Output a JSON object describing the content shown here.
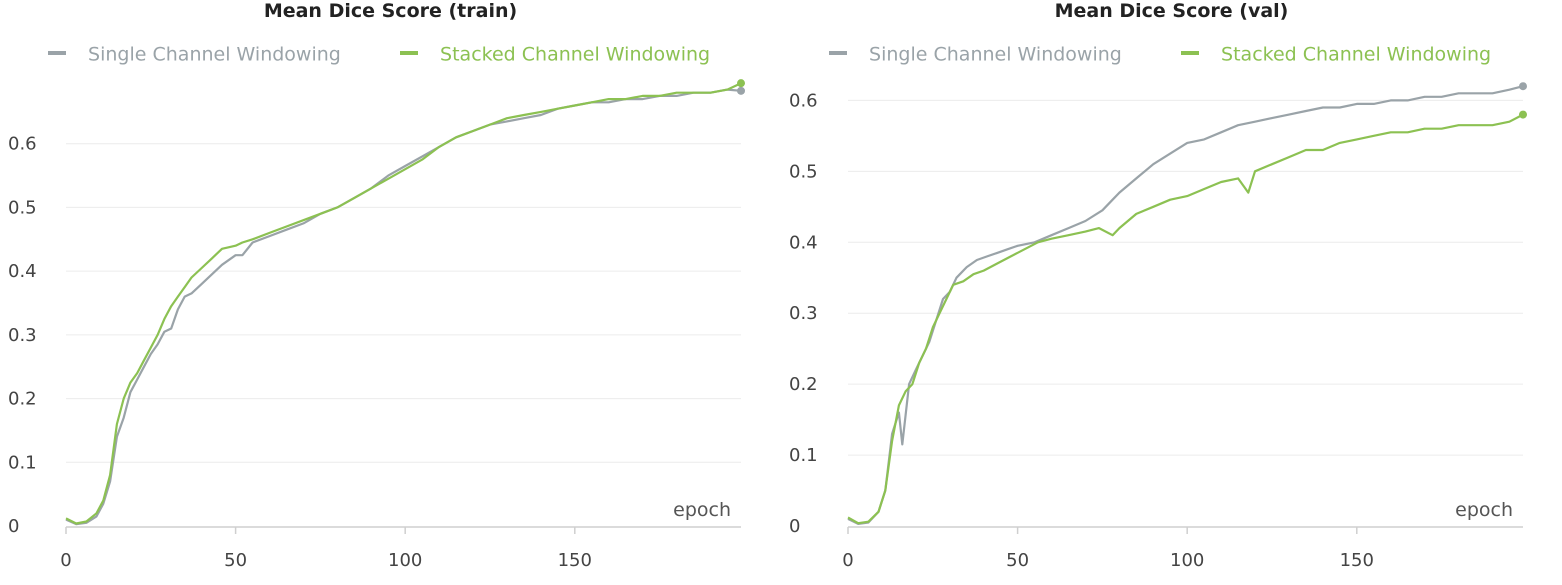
{
  "chart_data": [
    {
      "type": "line",
      "title": "Mean Dice Score (train)",
      "xlabel": "epoch",
      "ylabel": "",
      "xlim": [
        0,
        199
      ],
      "ylim": [
        0,
        0.7
      ],
      "xticks": [
        "0",
        "50",
        "100",
        "150"
      ],
      "yticks": [
        "0",
        "0.1",
        "0.2",
        "0.3",
        "0.4",
        "0.5",
        "0.6"
      ],
      "grid": "horizontal",
      "legend_position": "top-left",
      "series": [
        {
          "name": "Single Channel Windowing",
          "color": "#9aa3a8",
          "points": [
            [
              0,
              0.01
            ],
            [
              3,
              0.003
            ],
            [
              6,
              0.005
            ],
            [
              9,
              0.015
            ],
            [
              11,
              0.035
            ],
            [
              13,
              0.07
            ],
            [
              15,
              0.14
            ],
            [
              17,
              0.17
            ],
            [
              19,
              0.21
            ],
            [
              21,
              0.23
            ],
            [
              23,
              0.25
            ],
            [
              25,
              0.27
            ],
            [
              27,
              0.285
            ],
            [
              29,
              0.305
            ],
            [
              31,
              0.31
            ],
            [
              33,
              0.34
            ],
            [
              35,
              0.36
            ],
            [
              37,
              0.365
            ],
            [
              40,
              0.38
            ],
            [
              43,
              0.395
            ],
            [
              46,
              0.41
            ],
            [
              50,
              0.425
            ],
            [
              52,
              0.425
            ],
            [
              55,
              0.445
            ],
            [
              60,
              0.455
            ],
            [
              65,
              0.465
            ],
            [
              70,
              0.475
            ],
            [
              75,
              0.49
            ],
            [
              80,
              0.5
            ],
            [
              85,
              0.515
            ],
            [
              90,
              0.53
            ],
            [
              95,
              0.55
            ],
            [
              100,
              0.565
            ],
            [
              105,
              0.58
            ],
            [
              110,
              0.595
            ],
            [
              115,
              0.61
            ],
            [
              120,
              0.62
            ],
            [
              125,
              0.63
            ],
            [
              130,
              0.635
            ],
            [
              135,
              0.64
            ],
            [
              140,
              0.645
            ],
            [
              145,
              0.655
            ],
            [
              150,
              0.66
            ],
            [
              155,
              0.665
            ],
            [
              160,
              0.665
            ],
            [
              165,
              0.67
            ],
            [
              170,
              0.67
            ],
            [
              175,
              0.675
            ],
            [
              180,
              0.675
            ],
            [
              185,
              0.68
            ],
            [
              190,
              0.68
            ],
            [
              195,
              0.685
            ],
            [
              199,
              0.683
            ]
          ]
        },
        {
          "name": "Stacked Channel Windowing",
          "color": "#8cc152",
          "points": [
            [
              0,
              0.012
            ],
            [
              3,
              0.004
            ],
            [
              6,
              0.007
            ],
            [
              9,
              0.02
            ],
            [
              11,
              0.04
            ],
            [
              13,
              0.08
            ],
            [
              15,
              0.16
            ],
            [
              17,
              0.2
            ],
            [
              19,
              0.225
            ],
            [
              21,
              0.24
            ],
            [
              23,
              0.26
            ],
            [
              25,
              0.28
            ],
            [
              27,
              0.3
            ],
            [
              29,
              0.325
            ],
            [
              31,
              0.345
            ],
            [
              33,
              0.36
            ],
            [
              35,
              0.375
            ],
            [
              37,
              0.39
            ],
            [
              40,
              0.405
            ],
            [
              43,
              0.42
            ],
            [
              46,
              0.435
            ],
            [
              50,
              0.44
            ],
            [
              52,
              0.445
            ],
            [
              55,
              0.45
            ],
            [
              60,
              0.46
            ],
            [
              65,
              0.47
            ],
            [
              70,
              0.48
            ],
            [
              75,
              0.49
            ],
            [
              80,
              0.5
            ],
            [
              85,
              0.515
            ],
            [
              90,
              0.53
            ],
            [
              95,
              0.545
            ],
            [
              100,
              0.56
            ],
            [
              105,
              0.575
            ],
            [
              110,
              0.595
            ],
            [
              115,
              0.61
            ],
            [
              120,
              0.62
            ],
            [
              125,
              0.63
            ],
            [
              130,
              0.64
            ],
            [
              135,
              0.645
            ],
            [
              140,
              0.65
            ],
            [
              145,
              0.655
            ],
            [
              150,
              0.66
            ],
            [
              155,
              0.665
            ],
            [
              160,
              0.67
            ],
            [
              165,
              0.67
            ],
            [
              170,
              0.675
            ],
            [
              175,
              0.675
            ],
            [
              180,
              0.68
            ],
            [
              185,
              0.68
            ],
            [
              190,
              0.68
            ],
            [
              195,
              0.685
            ],
            [
              199,
              0.695
            ]
          ]
        }
      ]
    },
    {
      "type": "line",
      "title": "Mean Dice Score (val)",
      "xlabel": "epoch",
      "ylabel": "",
      "xlim": [
        0,
        199
      ],
      "ylim": [
        0,
        0.64
      ],
      "xticks": [
        "0",
        "50",
        "100",
        "150"
      ],
      "yticks": [
        "0",
        "0.1",
        "0.2",
        "0.3",
        "0.4",
        "0.5",
        "0.6"
      ],
      "grid": "horizontal",
      "legend_position": "top-left",
      "series": [
        {
          "name": "Single Channel Windowing",
          "color": "#9aa3a8",
          "points": [
            [
              0,
              0.01
            ],
            [
              3,
              0.003
            ],
            [
              6,
              0.005
            ],
            [
              9,
              0.02
            ],
            [
              11,
              0.05
            ],
            [
              13,
              0.13
            ],
            [
              15,
              0.16
            ],
            [
              16,
              0.115
            ],
            [
              18,
              0.2
            ],
            [
              20,
              0.22
            ],
            [
              22,
              0.24
            ],
            [
              24,
              0.26
            ],
            [
              26,
              0.29
            ],
            [
              28,
              0.32
            ],
            [
              30,
              0.33
            ],
            [
              32,
              0.35
            ],
            [
              35,
              0.365
            ],
            [
              38,
              0.375
            ],
            [
              41,
              0.38
            ],
            [
              44,
              0.385
            ],
            [
              47,
              0.39
            ],
            [
              50,
              0.395
            ],
            [
              55,
              0.4
            ],
            [
              60,
              0.41
            ],
            [
              65,
              0.42
            ],
            [
              70,
              0.43
            ],
            [
              75,
              0.445
            ],
            [
              78,
              0.46
            ],
            [
              80,
              0.47
            ],
            [
              85,
              0.49
            ],
            [
              90,
              0.51
            ],
            [
              95,
              0.525
            ],
            [
              100,
              0.54
            ],
            [
              105,
              0.545
            ],
            [
              110,
              0.555
            ],
            [
              115,
              0.565
            ],
            [
              120,
              0.57
            ],
            [
              125,
              0.575
            ],
            [
              130,
              0.58
            ],
            [
              135,
              0.585
            ],
            [
              140,
              0.59
            ],
            [
              145,
              0.59
            ],
            [
              150,
              0.595
            ],
            [
              155,
              0.595
            ],
            [
              160,
              0.6
            ],
            [
              165,
              0.6
            ],
            [
              170,
              0.605
            ],
            [
              175,
              0.605
            ],
            [
              180,
              0.61
            ],
            [
              185,
              0.61
            ],
            [
              190,
              0.61
            ],
            [
              195,
              0.615
            ],
            [
              199,
              0.62
            ]
          ]
        },
        {
          "name": "Stacked Channel Windowing",
          "color": "#8cc152",
          "points": [
            [
              0,
              0.012
            ],
            [
              3,
              0.004
            ],
            [
              6,
              0.006
            ],
            [
              9,
              0.02
            ],
            [
              11,
              0.05
            ],
            [
              13,
              0.12
            ],
            [
              15,
              0.17
            ],
            [
              17,
              0.19
            ],
            [
              19,
              0.2
            ],
            [
              21,
              0.23
            ],
            [
              23,
              0.25
            ],
            [
              25,
              0.28
            ],
            [
              27,
              0.3
            ],
            [
              29,
              0.32
            ],
            [
              31,
              0.34
            ],
            [
              34,
              0.345
            ],
            [
              37,
              0.355
            ],
            [
              40,
              0.36
            ],
            [
              44,
              0.37
            ],
            [
              48,
              0.38
            ],
            [
              52,
              0.39
            ],
            [
              56,
              0.4
            ],
            [
              60,
              0.405
            ],
            [
              65,
              0.41
            ],
            [
              70,
              0.415
            ],
            [
              74,
              0.42
            ],
            [
              78,
              0.41
            ],
            [
              80,
              0.42
            ],
            [
              85,
              0.44
            ],
            [
              90,
              0.45
            ],
            [
              95,
              0.46
            ],
            [
              100,
              0.465
            ],
            [
              105,
              0.475
            ],
            [
              110,
              0.485
            ],
            [
              115,
              0.49
            ],
            [
              118,
              0.47
            ],
            [
              120,
              0.5
            ],
            [
              125,
              0.51
            ],
            [
              130,
              0.52
            ],
            [
              135,
              0.53
            ],
            [
              140,
              0.53
            ],
            [
              145,
              0.54
            ],
            [
              150,
              0.545
            ],
            [
              155,
              0.55
            ],
            [
              160,
              0.555
            ],
            [
              165,
              0.555
            ],
            [
              170,
              0.56
            ],
            [
              175,
              0.56
            ],
            [
              180,
              0.565
            ],
            [
              185,
              0.565
            ],
            [
              190,
              0.565
            ],
            [
              195,
              0.57
            ],
            [
              199,
              0.58
            ]
          ]
        }
      ]
    }
  ]
}
